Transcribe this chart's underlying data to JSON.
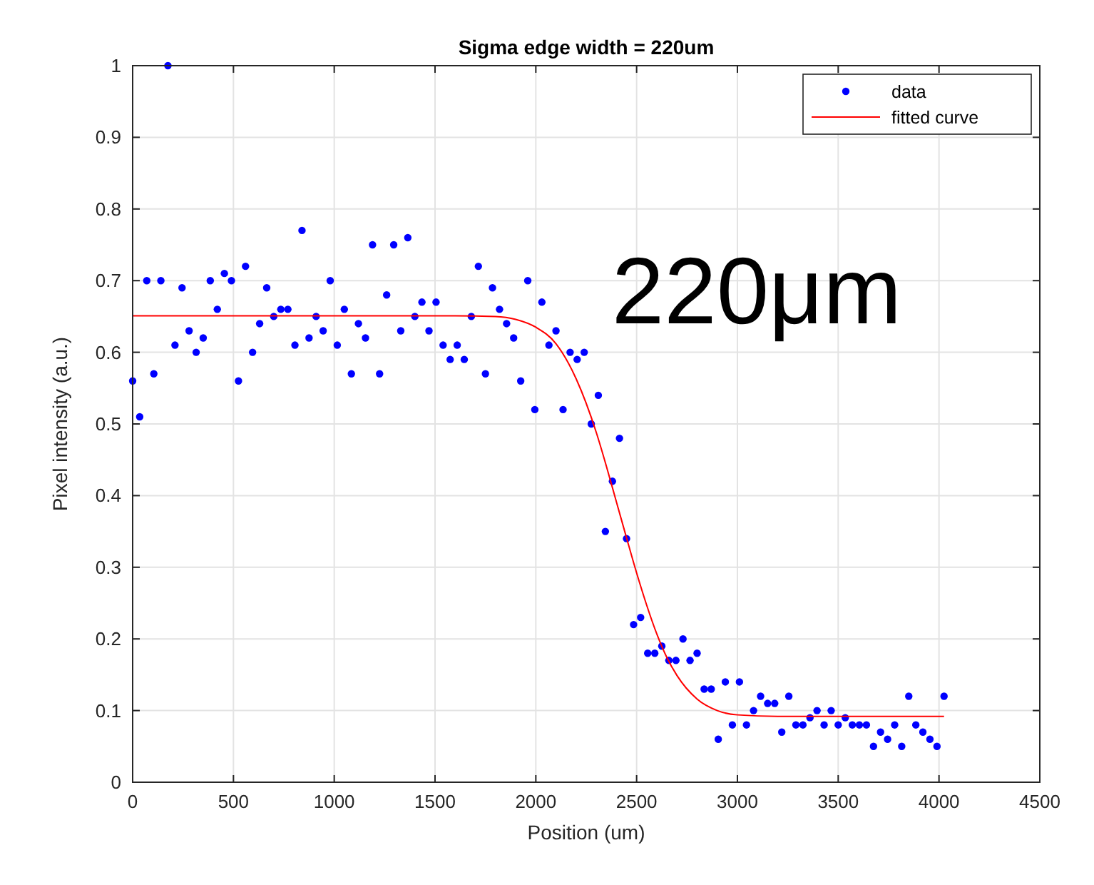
{
  "chart_data": {
    "type": "scatter",
    "title": "Sigma edge width = 220um",
    "xlabel": "Position (um)",
    "ylabel": "Pixel intensity (a.u.)",
    "xlim": [
      0,
      4500
    ],
    "xticks": [
      0,
      500,
      1000,
      1500,
      2000,
      2500,
      3000,
      3500,
      4000,
      4500
    ],
    "ylim": [
      0,
      1
    ],
    "yticks": [
      0,
      0.1,
      0.2,
      0.3,
      0.4,
      0.5,
      0.6,
      0.7,
      0.8,
      0.9,
      1
    ],
    "grid": true,
    "legend": "top right",
    "annotations": [
      "220μm"
    ],
    "series": [
      {
        "name": "data",
        "marker": "circle",
        "color": "#0000ff",
        "x": [
          0,
          35,
          70,
          105,
          140,
          175,
          210,
          245,
          280,
          315,
          350,
          385,
          420,
          455,
          490,
          525,
          560,
          595,
          630,
          665,
          700,
          735,
          770,
          805,
          840,
          875,
          910,
          945,
          980,
          1015,
          1050,
          1085,
          1120,
          1155,
          1190,
          1225,
          1260,
          1295,
          1330,
          1365,
          1400,
          1435,
          1470,
          1505,
          1540,
          1575,
          1610,
          1645,
          1680,
          1715,
          1750,
          1785,
          1820,
          1855,
          1890,
          1925,
          1960,
          1995,
          2030,
          2065,
          2100,
          2135,
          2170,
          2205,
          2240,
          2275,
          2310,
          2345,
          2380,
          2415,
          2450,
          2485,
          2520,
          2555,
          2590,
          2625,
          2660,
          2695,
          2730,
          2765,
          2800,
          2835,
          2870,
          2905,
          2940,
          2975,
          3010,
          3045,
          3080,
          3115,
          3150,
          3185,
          3220,
          3255,
          3290,
          3325,
          3360,
          3395,
          3430,
          3465,
          3500,
          3535,
          3570,
          3605,
          3640,
          3675,
          3710,
          3745,
          3780,
          3815,
          3850,
          3885,
          3920,
          3955,
          3990,
          4025
        ],
        "values": [
          0.56,
          0.51,
          0.7,
          0.57,
          0.7,
          1.0,
          0.61,
          0.69,
          0.63,
          0.6,
          0.62,
          0.7,
          0.66,
          0.71,
          0.7,
          0.56,
          0.72,
          0.6,
          0.64,
          0.69,
          0.65,
          0.66,
          0.66,
          0.61,
          0.77,
          0.62,
          0.65,
          0.63,
          0.7,
          0.61,
          0.66,
          0.57,
          0.64,
          0.62,
          0.75,
          0.57,
          0.68,
          0.75,
          0.63,
          0.76,
          0.65,
          0.67,
          0.63,
          0.67,
          0.61,
          0.59,
          0.61,
          0.59,
          0.65,
          0.72,
          0.57,
          0.69,
          0.66,
          0.64,
          0.62,
          0.56,
          0.7,
          0.52,
          0.67,
          0.61,
          0.63,
          0.52,
          0.6,
          0.59,
          0.6,
          0.5,
          0.54,
          0.35,
          0.42,
          0.48,
          0.34,
          0.22,
          0.23,
          0.18,
          0.18,
          0.19,
          0.17,
          0.17,
          0.2,
          0.17,
          0.18,
          0.13,
          0.13,
          0.06,
          0.14,
          0.08,
          0.14,
          0.08,
          0.1,
          0.12,
          0.11,
          0.11,
          0.07,
          0.12,
          0.08,
          0.08,
          0.09,
          0.1,
          0.08,
          0.1,
          0.08,
          0.09,
          0.08,
          0.08,
          0.08,
          0.05,
          0.07,
          0.06,
          0.08,
          0.05,
          0.12,
          0.08,
          0.07,
          0.06,
          0.05,
          0.12
        ]
      },
      {
        "name": "fitted curve",
        "type": "line",
        "marker": "none",
        "line_style": "solid",
        "color": "#ff0000",
        "x": [
          0,
          1600,
          1800,
          1900,
          2000,
          2100,
          2200,
          2300,
          2350,
          2400,
          2450,
          2500,
          2550,
          2600,
          2650,
          2700,
          2800,
          2900,
          3000,
          3200,
          4025
        ],
        "values": [
          0.651,
          0.651,
          0.65,
          0.646,
          0.635,
          0.612,
          0.563,
          0.488,
          0.441,
          0.391,
          0.341,
          0.292,
          0.247,
          0.207,
          0.174,
          0.149,
          0.116,
          0.1,
          0.094,
          0.092,
          0.092
        ]
      }
    ]
  }
}
